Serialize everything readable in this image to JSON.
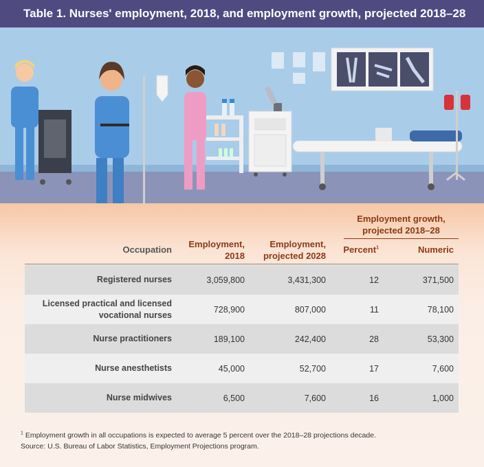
{
  "title": "Table 1. Nurses' employment, 2018, and employment growth, projected 2018–28",
  "colors": {
    "title_bar": "#4f4a80",
    "header_text": "#8b3a16",
    "row_shaded": "#dcdcdc",
    "row_light": "#efefef"
  },
  "chart_data": {
    "type": "table",
    "group_header": "Employment growth, projected 2018–28",
    "columns": {
      "occupation": "Occupation",
      "employment_2018": "Employment, 2018",
      "employment_2028": "Employment, projected 2028",
      "percent": "Percent",
      "percent_note_marker": "1",
      "numeric": "Numeric"
    },
    "rows": [
      {
        "occupation": "Registered nurses",
        "employment_2018": "3,059,800",
        "employment_2028": "3,431,300",
        "percent": "12",
        "numeric": "371,500"
      },
      {
        "occupation": "Licensed practical and licensed vocational nurses",
        "employment_2018": "728,900",
        "employment_2028": "807,000",
        "percent": "11",
        "numeric": "78,100"
      },
      {
        "occupation": "Nurse practitioners",
        "employment_2018": "189,100",
        "employment_2028": "242,400",
        "percent": "28",
        "numeric": "53,300"
      },
      {
        "occupation": "Nurse anesthetists",
        "employment_2018": "45,000",
        "employment_2028": "52,700",
        "percent": "17",
        "numeric": "7,600"
      },
      {
        "occupation": "Nurse midwives",
        "employment_2018": "6,500",
        "employment_2028": "7,600",
        "percent": "16",
        "numeric": "1,000"
      }
    ]
  },
  "footnote": {
    "marker": "1",
    "text": " Employment growth in all occupations is expected to average 5 percent over the 2018–28 projections decade.",
    "source": "Source: U.S. Bureau of Labor Statistics, Employment Projections program."
  }
}
